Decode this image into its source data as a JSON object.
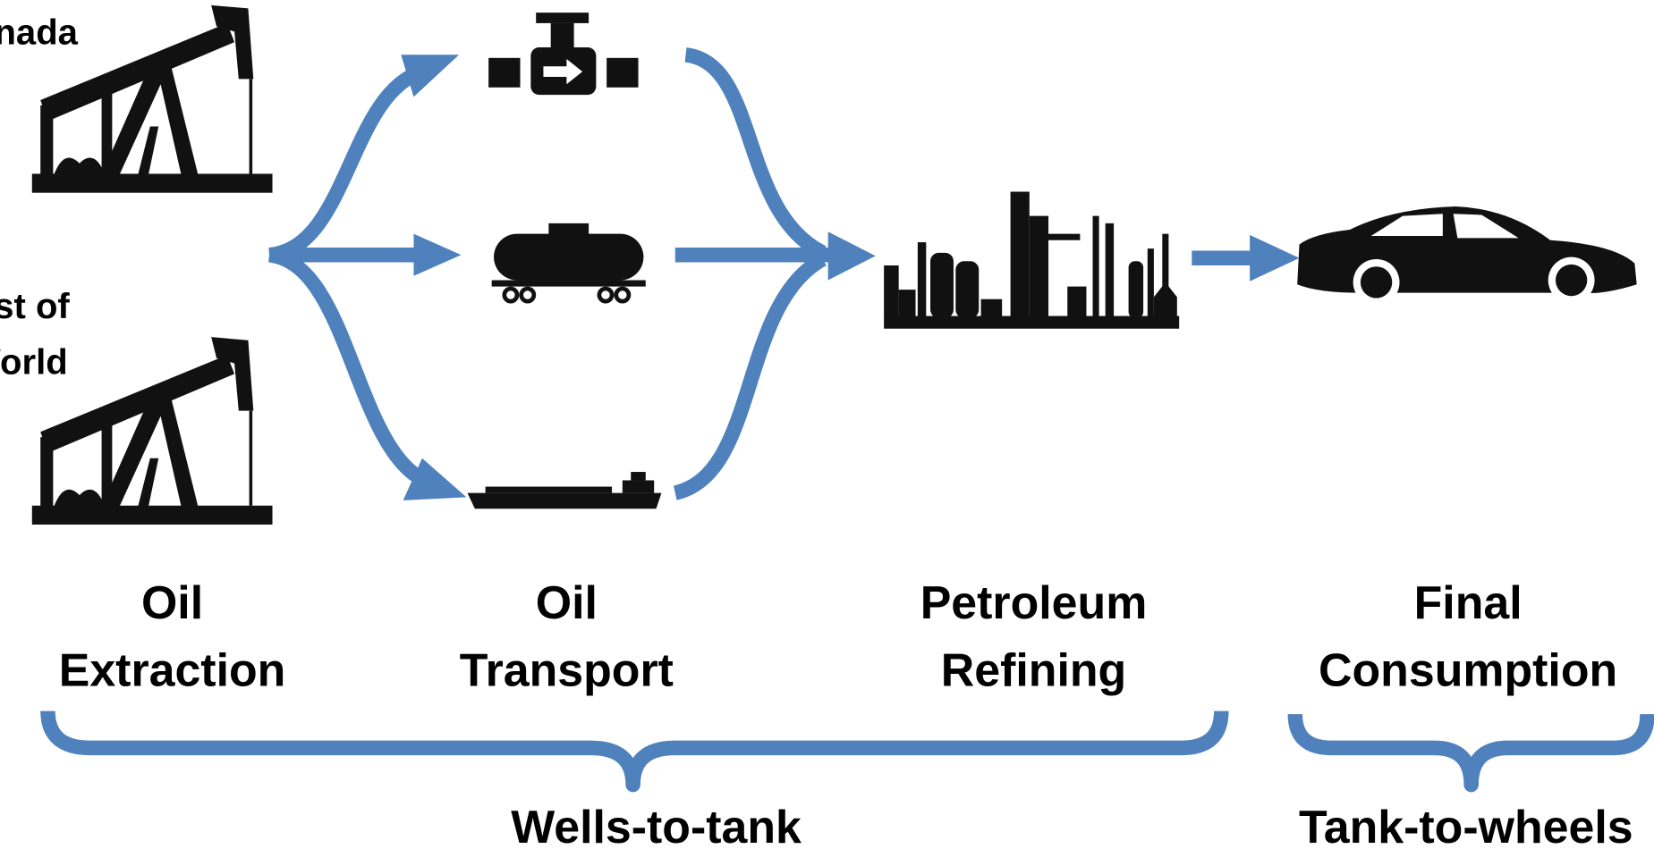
{
  "sources": [
    {
      "lines": [
        "Canada"
      ]
    },
    {
      "lines": [
        "Rest of",
        "World"
      ]
    }
  ],
  "stages": [
    {
      "lines": [
        "Oil",
        "Extraction"
      ]
    },
    {
      "lines": [
        "Oil",
        "Transport"
      ]
    },
    {
      "lines": [
        "Petroleum",
        "Refining"
      ]
    },
    {
      "lines": [
        "Final",
        "Consumption"
      ]
    }
  ],
  "phases": [
    "Wells-to-tank",
    "Tank-to-wheels"
  ]
}
